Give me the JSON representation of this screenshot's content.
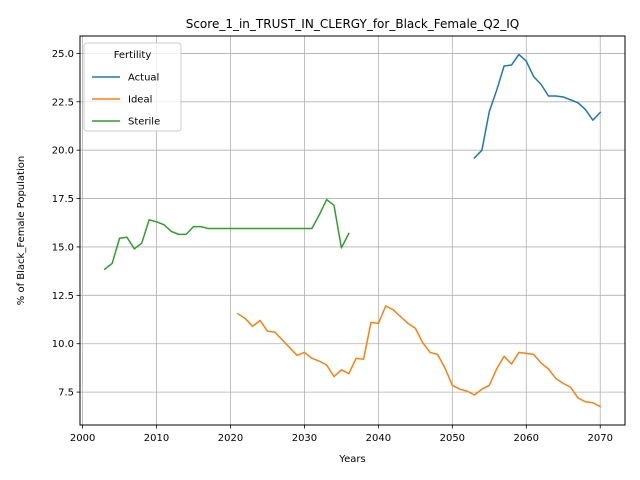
{
  "chart_data": {
    "type": "line",
    "title": "Score_1_in_TRUST_IN_CLERGY_for_Black_Female_Q2_IQ",
    "xlabel": "Years",
    "ylabel": "% of Black_Female Population",
    "xlim": [
      1999.65,
      2073.35
    ],
    "ylim": [
      5.8,
      25.9
    ],
    "xticks": [
      2000,
      2010,
      2020,
      2030,
      2040,
      2050,
      2060,
      2070
    ],
    "yticks": [
      7.5,
      10.0,
      12.5,
      15.0,
      17.5,
      20.0,
      22.5,
      25.0
    ],
    "xtick_labels": [
      "2000",
      "2010",
      "2020",
      "2030",
      "2040",
      "2050",
      "2060",
      "2070"
    ],
    "ytick_labels": [
      "7.5",
      "10.0",
      "12.5",
      "15.0",
      "17.5",
      "20.0",
      "22.5",
      "25.0"
    ],
    "grid": true,
    "legend": {
      "title": "Fertility",
      "placement": "top-left"
    },
    "series": [
      {
        "name": "Actual",
        "color": "#1f77b4",
        "x": [
          2053,
          2054,
          2055,
          2056,
          2057,
          2058,
          2059,
          2060,
          2061,
          2062,
          2063,
          2064,
          2065,
          2066,
          2067,
          2068,
          2069,
          2070
        ],
        "y": [
          19.6,
          20.0,
          22.0,
          23.1,
          24.35,
          24.4,
          24.95,
          24.6,
          23.8,
          23.4,
          22.8,
          22.8,
          22.75,
          22.6,
          22.45,
          22.1,
          21.55,
          21.95
        ]
      },
      {
        "name": "Ideal",
        "color": "#ff7f0e",
        "x": [
          2021,
          2022,
          2023,
          2024,
          2025,
          2026,
          2027,
          2028,
          2029,
          2030,
          2031,
          2032,
          2033,
          2034,
          2035,
          2036,
          2037,
          2038,
          2039,
          2040,
          2041,
          2042,
          2043,
          2044,
          2045,
          2046,
          2047,
          2048,
          2049,
          2050,
          2051,
          2052,
          2053,
          2054,
          2055,
          2056,
          2057,
          2058,
          2059,
          2060,
          2061,
          2062,
          2063,
          2064,
          2065,
          2066,
          2067,
          2068,
          2069,
          2070
        ],
        "y": [
          11.55,
          11.3,
          10.9,
          11.2,
          10.65,
          10.6,
          10.2,
          9.8,
          9.4,
          9.55,
          9.25,
          9.1,
          8.9,
          8.3,
          8.65,
          8.45,
          9.25,
          9.2,
          11.1,
          11.05,
          11.95,
          11.75,
          11.4,
          11.05,
          10.8,
          10.05,
          9.55,
          9.45,
          8.75,
          7.85,
          7.65,
          7.55,
          7.35,
          7.65,
          7.85,
          8.7,
          9.35,
          8.95,
          9.55,
          9.5,
          9.45,
          9.0,
          8.7,
          8.2,
          7.95,
          7.75,
          7.2,
          7.0,
          6.95,
          6.75
        ]
      },
      {
        "name": "Sterile",
        "color": "#2ca02c",
        "x": [
          2003,
          2004,
          2005,
          2006,
          2007,
          2008,
          2009,
          2010,
          2011,
          2012,
          2013,
          2014,
          2015,
          2016,
          2017,
          2018,
          2019,
          2020,
          2021,
          2022,
          2023,
          2024,
          2025,
          2026,
          2027,
          2028,
          2029,
          2030,
          2031,
          2032,
          2033,
          2034,
          2035,
          2036
        ],
        "y": [
          13.85,
          14.15,
          15.45,
          15.5,
          14.9,
          15.2,
          16.4,
          16.3,
          16.15,
          15.8,
          15.65,
          15.65,
          16.05,
          16.05,
          15.95,
          15.95,
          15.95,
          15.95,
          15.95,
          15.95,
          15.95,
          15.95,
          15.95,
          15.95,
          15.95,
          15.95,
          15.95,
          15.95,
          15.95,
          16.65,
          17.45,
          17.15,
          14.95,
          15.7
        ]
      }
    ]
  }
}
